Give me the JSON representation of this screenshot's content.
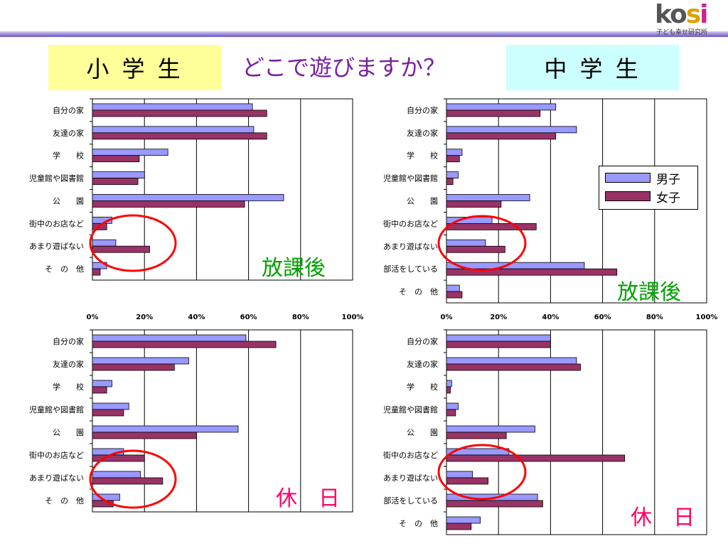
{
  "header": {
    "logo_word": "kosi",
    "logo_sub": "子ども幸せ研究所",
    "elementary_label": "小 学 生",
    "junior_label": "中 学 生",
    "question": "どこで遊びますか？"
  },
  "legend": {
    "boys": "男子",
    "girls": "女子"
  },
  "captions": {
    "after_school": "放課後",
    "holiday": "休　日"
  },
  "colors": {
    "boys": "#9999ff",
    "girls": "#993366",
    "highlight": "#ff0000",
    "grid": "#000000"
  },
  "chart_data": [
    {
      "type": "bar",
      "id": "elementary-after-school",
      "categories": [
        "自分の家",
        "友達の家",
        "学　　校",
        "児童館や図書館",
        "公　　園",
        "街中のお店など",
        "あまり遊ばない",
        "そ　の　他"
      ],
      "series": [
        {
          "name": "男子",
          "values": [
            61.5,
            62,
            29,
            20,
            73.5,
            7.5,
            9,
            5.5
          ]
        },
        {
          "name": "女子",
          "values": [
            67,
            67,
            18,
            17.5,
            58.5,
            5.5,
            22,
            3
          ]
        }
      ],
      "xlim": [
        0,
        100
      ],
      "x_ticks": [
        "0%",
        "20%",
        "40%",
        "60%",
        "80%",
        "100%"
      ],
      "highlight_category": "あまり遊ばない"
    },
    {
      "type": "bar",
      "id": "junior-after-school",
      "categories": [
        "自分の家",
        "友達の家",
        "学　　校",
        "児童館や図書館",
        "公　　園",
        "街中のお店など",
        "あまり遊ばない",
        "部活をしている",
        "そ　の　他"
      ],
      "series": [
        {
          "name": "男子",
          "values": [
            42,
            50,
            6,
            4.5,
            32,
            17.5,
            15,
            53,
            5
          ]
        },
        {
          "name": "女子",
          "values": [
            36,
            42,
            5,
            2.5,
            21,
            34.5,
            22.5,
            65.5,
            6
          ]
        }
      ],
      "xlim": [
        0,
        100
      ],
      "x_ticks": [
        "0%",
        "20%",
        "40%",
        "60%",
        "80%",
        "100%"
      ],
      "highlight_category": "あまり遊ばない"
    },
    {
      "type": "bar",
      "id": "elementary-holiday",
      "categories": [
        "自分の家",
        "友達の家",
        "学　　校",
        "児童館や図書館",
        "公　　園",
        "街中のお店など",
        "あまり遊ばない",
        "そ　の　他"
      ],
      "series": [
        {
          "name": "男子",
          "values": [
            59,
            37,
            7.5,
            14,
            56,
            12,
            18.5,
            10.5
          ]
        },
        {
          "name": "女子",
          "values": [
            70.5,
            31.5,
            5.5,
            12,
            40,
            20,
            27,
            8
          ]
        }
      ],
      "xlim": [
        0,
        100
      ],
      "highlight_category": "あまり遊ばない"
    },
    {
      "type": "bar",
      "id": "junior-holiday",
      "categories": [
        "自分の家",
        "友達の家",
        "学　　校",
        "児童館や図書館",
        "公　　園",
        "街中のお店など",
        "あまり遊ばない",
        "部活をしている",
        "そ　の　他"
      ],
      "series": [
        {
          "name": "男子",
          "values": [
            40,
            50,
            2,
            4.5,
            34,
            24,
            10,
            35,
            13
          ]
        },
        {
          "name": "女子",
          "values": [
            40,
            51.5,
            1.5,
            3.5,
            23,
            68.5,
            16,
            37,
            9.5
          ]
        }
      ],
      "xlim": [
        0,
        100
      ],
      "highlight_category": "あまり遊ばない"
    }
  ]
}
